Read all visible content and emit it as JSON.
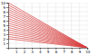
{
  "chart_data": {
    "type": "line",
    "x": [
      0.0,
      10.0
    ],
    "series": [
      {
        "values": [
          10.0,
          0.0
        ]
      },
      {
        "values": [
          9.5,
          0.0
        ]
      },
      {
        "values": [
          9.0,
          0.0
        ]
      },
      {
        "values": [
          8.5,
          0.0
        ]
      },
      {
        "values": [
          8.0,
          0.0
        ]
      },
      {
        "values": [
          7.5,
          0.0
        ]
      },
      {
        "values": [
          7.0,
          0.0
        ]
      },
      {
        "values": [
          6.5,
          0.0
        ]
      },
      {
        "values": [
          6.0,
          0.0
        ]
      },
      {
        "values": [
          5.5,
          0.0
        ]
      },
      {
        "values": [
          5.0,
          0.0
        ]
      },
      {
        "values": [
          4.5,
          0.0
        ]
      },
      {
        "values": [
          4.0,
          0.0
        ]
      },
      {
        "values": [
          3.5,
          0.0
        ]
      },
      {
        "values": [
          3.0,
          0.0
        ]
      },
      {
        "values": [
          2.5,
          0.0
        ]
      },
      {
        "values": [
          2.0,
          0.0
        ]
      }
    ],
    "color": "#d84040",
    "xlim": [
      0,
      10
    ],
    "ylim": [
      0,
      10
    ],
    "xticks": [
      1,
      2,
      3,
      4,
      5,
      6,
      7,
      8,
      9,
      10
    ],
    "yticks": [
      1,
      2,
      3,
      4,
      5,
      6,
      7,
      8,
      9,
      10
    ],
    "grid": true
  }
}
